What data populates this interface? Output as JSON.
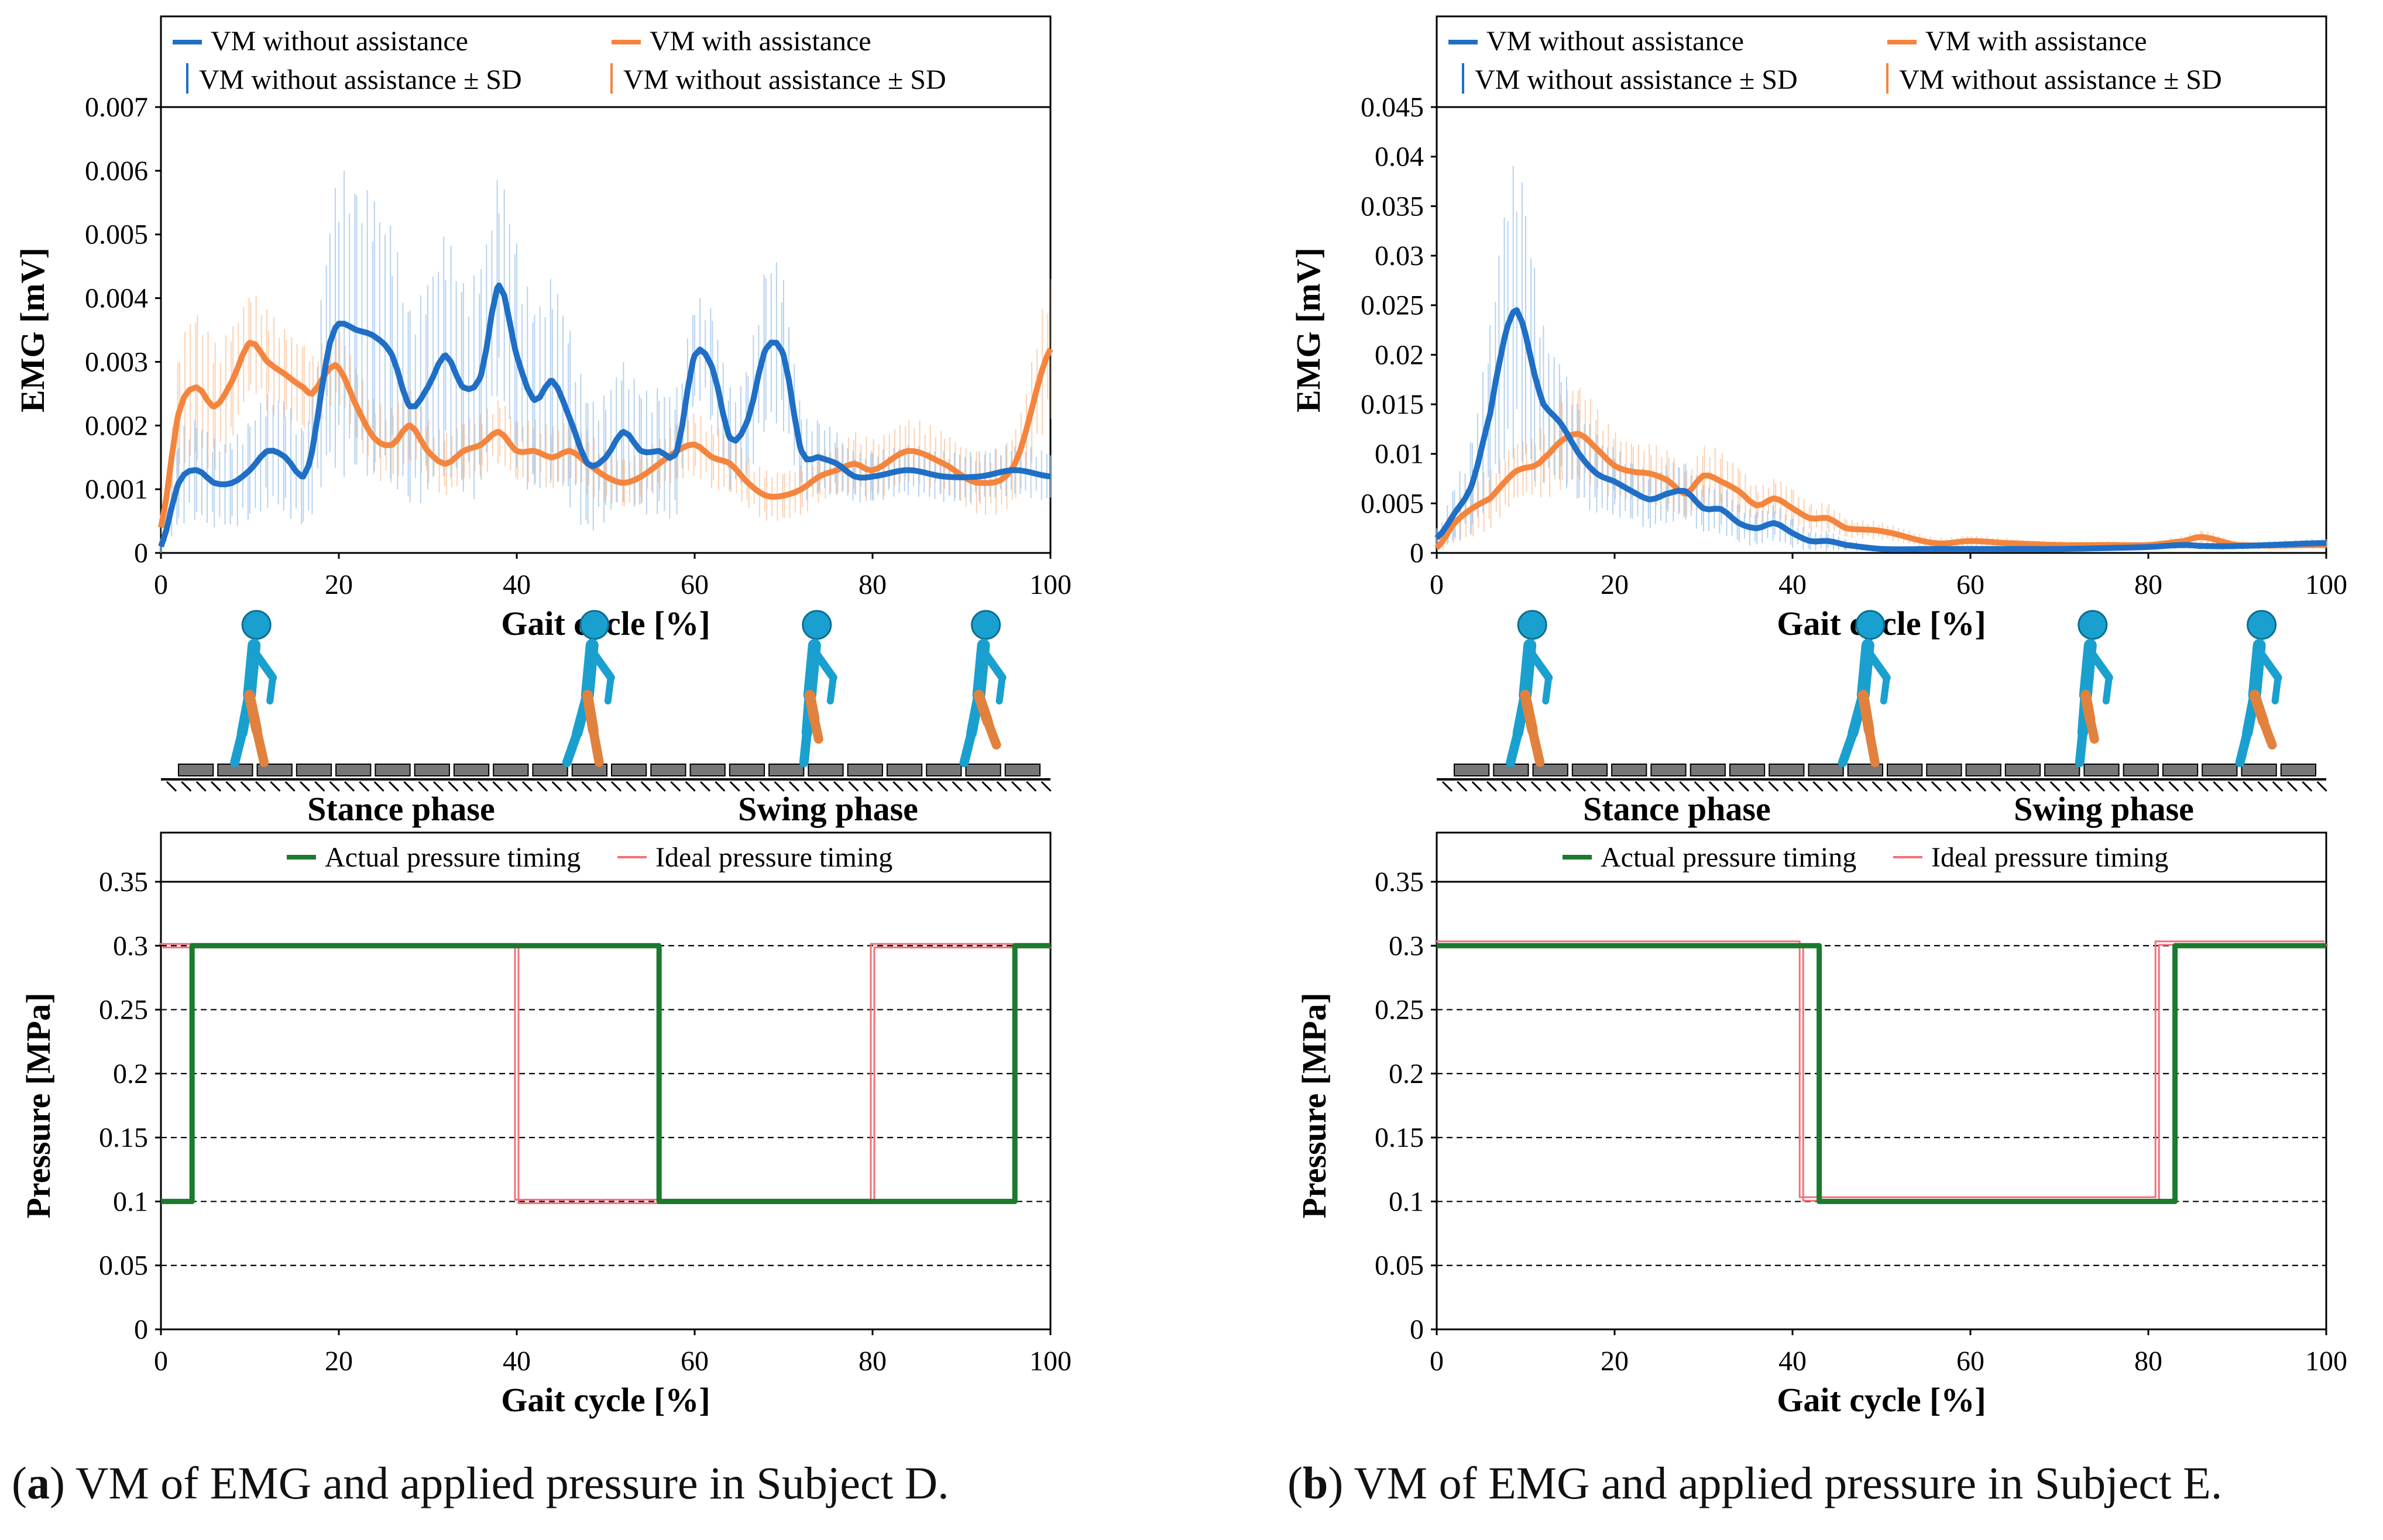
{
  "colors": {
    "blue": "#1f6fc6",
    "orange": "#f4853e",
    "sd_blue": "#9ec3e8",
    "sd_orange": "#f9c19a",
    "green": "#1a7a2e",
    "red": "#f0707a",
    "skin": "#1aa0cf",
    "leg": "#e0823e",
    "track": "#777777"
  },
  "figure": {
    "phase_labels": {
      "stance": "Stance phase",
      "swing": "Swing phase"
    }
  },
  "panels": [
    {
      "caption_letter": "a",
      "caption_text": " VM of EMG and applied pressure in Subject D."
    },
    {
      "caption_letter": "b",
      "caption_text": " VM of EMG and applied pressure in Subject E."
    }
  ],
  "chart_data": [
    {
      "type": "line",
      "panel": "a",
      "title": "",
      "xlabel": "Gait cycle [%]",
      "ylabel": "EMG [mV]",
      "xlim": [
        0,
        100
      ],
      "ylim": [
        0,
        0.007
      ],
      "xticks": [
        "0",
        "20",
        "40",
        "60",
        "80",
        "100"
      ],
      "yticks": [
        "0",
        "0.001",
        "0.002",
        "0.003",
        "0.004",
        "0.005",
        "0.006",
        "0.007"
      ],
      "legend": [
        "VM without assistance",
        "VM with assistance",
        "VM without assistance ± SD",
        "VM without assistance ± SD"
      ],
      "x": [
        0,
        2,
        4,
        6,
        8,
        10,
        12,
        14,
        16,
        17,
        18,
        19,
        20,
        22,
        24,
        26,
        28,
        30,
        32,
        34,
        36,
        38,
        40,
        42,
        44,
        46,
        48,
        50,
        52,
        54,
        56,
        58,
        60,
        62,
        64,
        66,
        68,
        70,
        72,
        74,
        76,
        78,
        80,
        84,
        88,
        92,
        96,
        100
      ],
      "series": [
        {
          "name": "VM without assistance",
          "values": [
            0.0001,
            0.0011,
            0.0013,
            0.0011,
            0.0011,
            0.0013,
            0.0016,
            0.0015,
            0.0012,
            0.0016,
            0.0025,
            0.0033,
            0.0036,
            0.0035,
            0.0034,
            0.0031,
            0.0023,
            0.0026,
            0.0031,
            0.0026,
            0.0028,
            0.0042,
            0.0031,
            0.0024,
            0.0027,
            0.0021,
            0.0014,
            0.0015,
            0.0019,
            0.0016,
            0.0016,
            0.0016,
            0.0031,
            0.0029,
            0.0018,
            0.0021,
            0.0032,
            0.0031,
            0.0016,
            0.0015,
            0.0014,
            0.0012,
            0.0012,
            0.0013,
            0.0012,
            0.0012,
            0.0013,
            0.0012
          ]
        },
        {
          "name": "VM with assistance",
          "values": [
            0.0004,
            0.0022,
            0.0026,
            0.0023,
            0.0027,
            0.0033,
            0.003,
            0.0028,
            0.0026,
            0.0025,
            0.0027,
            0.0029,
            0.0029,
            0.0023,
            0.0018,
            0.0017,
            0.002,
            0.0016,
            0.0014,
            0.0016,
            0.0017,
            0.0019,
            0.0016,
            0.0016,
            0.0015,
            0.0016,
            0.0014,
            0.0012,
            0.0011,
            0.0012,
            0.0014,
            0.0016,
            0.0017,
            0.0015,
            0.0014,
            0.0011,
            0.0009,
            0.0009,
            0.001,
            0.0012,
            0.0013,
            0.0014,
            0.0013,
            0.0016,
            0.0014,
            0.0011,
            0.0014,
            0.0032
          ]
        }
      ],
      "sd": [
        0.0001,
        0.0007,
        0.0008,
        0.0007,
        0.0007,
        0.0008,
        0.0009,
        0.0009,
        0.0008,
        0.001,
        0.0015,
        0.002,
        0.0024,
        0.0023,
        0.0022,
        0.002,
        0.0016,
        0.0017,
        0.0019,
        0.0017,
        0.0018,
        0.0017,
        0.0018,
        0.0015,
        0.0016,
        0.0014,
        0.0011,
        0.001,
        0.0011,
        0.001,
        0.001,
        0.001,
        0.0008,
        0.0009,
        0.0008,
        0.0009,
        0.0013,
        0.0012,
        0.0007,
        0.0006,
        0.0005,
        0.0004,
        0.0004,
        0.0004,
        0.0004,
        0.0004,
        0.0004,
        0.0004
      ],
      "sd_with": [
        0.0002,
        0.001,
        0.0012,
        0.001,
        0.0009,
        0.0008,
        0.0008,
        0.0007,
        0.0007,
        0.0006,
        0.0006,
        0.0006,
        0.0006,
        0.0006,
        0.0006,
        0.0006,
        0.0006,
        0.0005,
        0.0005,
        0.0005,
        0.0005,
        0.0005,
        0.0005,
        0.0005,
        0.0005,
        0.0005,
        0.0005,
        0.0004,
        0.0004,
        0.0004,
        0.0004,
        0.0005,
        0.0005,
        0.0005,
        0.0005,
        0.0004,
        0.0004,
        0.0004,
        0.0004,
        0.0004,
        0.0004,
        0.0005,
        0.0005,
        0.0005,
        0.0005,
        0.0005,
        0.0006,
        0.0011
      ]
    },
    {
      "type": "line",
      "panel": "a",
      "xlabel": "Gait cycle [%]",
      "ylabel": "Pressure [MPa]",
      "xlim": [
        0,
        100
      ],
      "ylim": [
        0,
        0.35
      ],
      "xticks": [
        "0",
        "20",
        "40",
        "60",
        "80",
        "100"
      ],
      "yticks": [
        "0",
        "0.05",
        "0.1",
        "0.15",
        "0.2",
        "0.25",
        "0.3",
        "0.35"
      ],
      "gridlines": [
        0.05,
        0.1,
        0.15,
        0.2,
        0.25,
        0.3
      ],
      "legend": [
        "Actual pressure timing",
        "Ideal pressure timing"
      ],
      "series": [
        {
          "name": "Actual pressure timing",
          "x": [
            0,
            3.5,
            3.5,
            56,
            56,
            96,
            96,
            100
          ],
          "values": [
            0.1,
            0.1,
            0.3,
            0.3,
            0.1,
            0.1,
            0.3,
            0.3
          ]
        },
        {
          "name": "Ideal pressure timing",
          "x": [
            0,
            40,
            40,
            80,
            80,
            100
          ],
          "values": [
            0.3,
            0.3,
            0.1,
            0.1,
            0.3,
            0.3
          ]
        }
      ]
    },
    {
      "type": "line",
      "panel": "b",
      "xlabel": "Gait cycle [%]",
      "ylabel": "EMG [mV]",
      "xlim": [
        0,
        100
      ],
      "ylim": [
        0,
        0.045
      ],
      "xticks": [
        "0",
        "20",
        "40",
        "60",
        "80",
        "100"
      ],
      "yticks": [
        "0",
        "0.005",
        "0.01",
        "0.015",
        "0.02",
        "0.025",
        "0.03",
        "0.035",
        "0.04",
        "0.045"
      ],
      "legend": [
        "VM without assistance",
        "VM with assistance",
        "VM without assistance ± SD",
        "VM without assistance ± SD"
      ],
      "x": [
        0,
        2,
        4,
        6,
        7,
        8,
        9,
        10,
        11,
        12,
        14,
        16,
        18,
        20,
        22,
        24,
        26,
        28,
        30,
        32,
        34,
        36,
        38,
        40,
        42,
        44,
        46,
        50,
        56,
        60,
        64,
        70,
        76,
        80,
        84,
        86,
        90,
        100
      ],
      "series": [
        {
          "name": "VM without assistance",
          "values": [
            0.0015,
            0.004,
            0.007,
            0.014,
            0.019,
            0.023,
            0.0245,
            0.022,
            0.018,
            0.015,
            0.013,
            0.01,
            0.008,
            0.0072,
            0.0062,
            0.0054,
            0.006,
            0.0062,
            0.0045,
            0.0044,
            0.003,
            0.0025,
            0.003,
            0.002,
            0.0012,
            0.0012,
            0.0008,
            0.0004,
            0.0004,
            0.0004,
            0.0004,
            0.0004,
            0.0005,
            0.0006,
            0.0008,
            0.0007,
            0.0007,
            0.001
          ]
        },
        {
          "name": "VM with assistance",
          "values": [
            0.0005,
            0.003,
            0.0045,
            0.0055,
            0.0065,
            0.0075,
            0.0083,
            0.0086,
            0.0088,
            0.0095,
            0.0113,
            0.012,
            0.0105,
            0.0088,
            0.0082,
            0.008,
            0.0073,
            0.006,
            0.0078,
            0.0072,
            0.0062,
            0.0048,
            0.0055,
            0.0045,
            0.0035,
            0.0035,
            0.0025,
            0.0022,
            0.001,
            0.0012,
            0.001,
            0.0008,
            0.0008,
            0.0008,
            0.0012,
            0.0016,
            0.0008,
            0.0008
          ]
        }
      ],
      "sd": [
        0.001,
        0.003,
        0.005,
        0.009,
        0.012,
        0.014,
        0.015,
        0.014,
        0.011,
        0.008,
        0.006,
        0.005,
        0.004,
        0.0035,
        0.003,
        0.003,
        0.003,
        0.003,
        0.0025,
        0.0025,
        0.002,
        0.0018,
        0.0018,
        0.0015,
        0.001,
        0.001,
        0.0006,
        0.0003,
        0.0003,
        0.0003,
        0.0003,
        0.0003,
        0.0003,
        0.0003,
        0.0004,
        0.0004,
        0.0004,
        0.0005
      ],
      "sd_with": [
        0.0004,
        0.002,
        0.003,
        0.003,
        0.003,
        0.003,
        0.003,
        0.003,
        0.003,
        0.004,
        0.005,
        0.005,
        0.004,
        0.0035,
        0.003,
        0.003,
        0.003,
        0.0025,
        0.003,
        0.003,
        0.0025,
        0.002,
        0.002,
        0.002,
        0.0015,
        0.0015,
        0.001,
        0.0009,
        0.0006,
        0.0006,
        0.0005,
        0.0004,
        0.0004,
        0.0004,
        0.0006,
        0.0007,
        0.0004,
        0.0004
      ]
    },
    {
      "type": "line",
      "panel": "b",
      "xlabel": "Gait cycle [%]",
      "ylabel": "Pressure [MPa]",
      "xlim": [
        0,
        100
      ],
      "ylim": [
        0,
        0.35
      ],
      "xticks": [
        "0",
        "20",
        "40",
        "60",
        "80",
        "100"
      ],
      "yticks": [
        "0",
        "0.05",
        "0.1",
        "0.15",
        "0.2",
        "0.25",
        "0.3",
        "0.35"
      ],
      "gridlines": [
        0.05,
        0.1,
        0.15,
        0.2,
        0.25,
        0.3
      ],
      "legend": [
        "Actual pressure timing",
        "Ideal pressure timing"
      ],
      "series": [
        {
          "name": "Actual pressure timing",
          "x": [
            0,
            43,
            43,
            83,
            83,
            100
          ],
          "values": [
            0.3,
            0.3,
            0.1,
            0.1,
            0.3,
            0.3
          ]
        },
        {
          "name": "Ideal pressure timing",
          "x": [
            0,
            41,
            41,
            81,
            81,
            100
          ],
          "values": [
            0.302,
            0.302,
            0.102,
            0.102,
            0.302,
            0.302
          ]
        }
      ]
    }
  ]
}
